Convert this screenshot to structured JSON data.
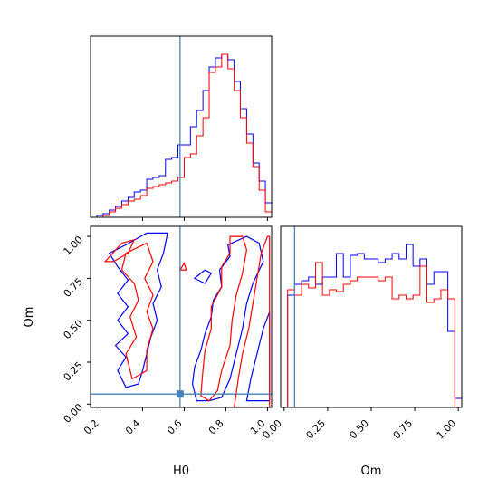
{
  "chart_data": {
    "type": "corner",
    "parameters": [
      "H0",
      "Om"
    ],
    "truths": {
      "H0": 0.58,
      "Om": 0.06
    },
    "colors": {
      "series_a": "#0000ff",
      "series_b": "#ff0000",
      "truth": "#4682b4"
    },
    "panels": [
      {
        "name": "H0-histogram",
        "type": "histogram",
        "xlim": [
          0.15,
          1.02
        ],
        "bin_edges": [
          0.15,
          0.18,
          0.21,
          0.24,
          0.27,
          0.3,
          0.33,
          0.36,
          0.39,
          0.42,
          0.45,
          0.48,
          0.51,
          0.54,
          0.57,
          0.6,
          0.63,
          0.66,
          0.69,
          0.72,
          0.75,
          0.78,
          0.81,
          0.84,
          0.87,
          0.9,
          0.93,
          0.96,
          0.99,
          1.02
        ],
        "series": [
          {
            "color": "blue",
            "values": [
              0,
              1,
              2,
              4,
              6,
              9,
              11,
              14,
              15,
              21,
              22,
              23,
              32,
              33,
              40,
              40,
              50,
              59,
              70,
              83,
              88,
              90,
              87,
              75,
              60,
              46,
              30,
              20,
              8
            ]
          },
          {
            "color": "red",
            "values": [
              0,
              0,
              1,
              3,
              5,
              7,
              9,
              10,
              12,
              16,
              17,
              18,
              19,
              20,
              22,
              33,
              35,
              45,
              55,
              80,
              83,
              90,
              82,
              70,
              55,
              41,
              28,
              15,
              3
            ]
          }
        ],
        "ylim": [
          0,
          100
        ]
      },
      {
        "name": "H0-Om-contour",
        "type": "contour",
        "xlim": [
          0.15,
          1.02
        ],
        "ylim": [
          -0.02,
          1.06
        ],
        "series": [
          {
            "color": "blue",
            "level_paths": [
              [
                [
                  0.32,
                  0.1
                ],
                [
                  0.28,
                  0.2
                ],
                [
                  0.32,
                  0.28
                ],
                [
                  0.27,
                  0.35
                ],
                [
                  0.33,
                  0.42
                ],
                [
                  0.28,
                  0.5
                ],
                [
                  0.33,
                  0.58
                ],
                [
                  0.28,
                  0.66
                ],
                [
                  0.33,
                  0.74
                ],
                [
                  0.28,
                  0.82
                ],
                [
                  0.24,
                  0.9
                ],
                [
                  0.32,
                  0.95
                ],
                [
                  0.42,
                  1.02
                ],
                [
                  0.52,
                  1.02
                ],
                [
                  0.5,
                  0.9
                ],
                [
                  0.47,
                  0.8
                ],
                [
                  0.49,
                  0.7
                ],
                [
                  0.45,
                  0.6
                ],
                [
                  0.47,
                  0.5
                ],
                [
                  0.44,
                  0.4
                ],
                [
                  0.42,
                  0.3
                ],
                [
                  0.4,
                  0.2
                ],
                [
                  0.38,
                  0.12
                ],
                [
                  0.32,
                  0.1
                ]
              ],
              [
                [
                  0.66,
                  0.02
                ],
                [
                  0.64,
                  0.12
                ],
                [
                  0.65,
                  0.22
                ],
                [
                  0.68,
                  0.32
                ],
                [
                  0.7,
                  0.42
                ],
                [
                  0.73,
                  0.52
                ],
                [
                  0.74,
                  0.62
                ],
                [
                  0.78,
                  0.7
                ],
                [
                  0.77,
                  0.8
                ],
                [
                  0.82,
                  0.88
                ],
                [
                  0.81,
                  0.95
                ],
                [
                  0.9,
                  1.0
                ],
                [
                  0.96,
                  0.96
                ],
                [
                  0.98,
                  0.85
                ],
                [
                  0.93,
                  0.72
                ],
                [
                  0.9,
                  0.6
                ],
                [
                  0.88,
                  0.45
                ],
                [
                  0.85,
                  0.3
                ],
                [
                  0.82,
                  0.15
                ],
                [
                  0.78,
                  0.04
                ],
                [
                  0.72,
                  0.02
                ],
                [
                  0.66,
                  0.02
                ]
              ],
              [
                [
                  0.9,
                  0.02
                ],
                [
                  0.92,
                  0.15
                ],
                [
                  0.95,
                  0.3
                ],
                [
                  0.98,
                  0.45
                ],
                [
                  1.01,
                  0.55
                ],
                [
                  1.01,
                  0.02
                ],
                [
                  0.9,
                  0.02
                ]
              ],
              [
                [
                  0.65,
                  0.75
                ],
                [
                  0.7,
                  0.8
                ],
                [
                  0.73,
                  0.78
                ],
                [
                  0.7,
                  0.72
                ],
                [
                  0.65,
                  0.75
                ]
              ]
            ]
          },
          {
            "color": "red",
            "level_paths": [
              [
                [
                  0.35,
                  0.15
                ],
                [
                  0.32,
                  0.3
                ],
                [
                  0.37,
                  0.4
                ],
                [
                  0.34,
                  0.52
                ],
                [
                  0.38,
                  0.62
                ],
                [
                  0.36,
                  0.72
                ],
                [
                  0.3,
                  0.8
                ],
                [
                  0.32,
                  0.9
                ],
                [
                  0.42,
                  0.96
                ],
                [
                  0.45,
                  0.85
                ],
                [
                  0.41,
                  0.75
                ],
                [
                  0.45,
                  0.65
                ],
                [
                  0.42,
                  0.55
                ],
                [
                  0.45,
                  0.45
                ],
                [
                  0.42,
                  0.32
                ],
                [
                  0.42,
                  0.2
                ],
                [
                  0.35,
                  0.15
                ]
              ],
              [
                [
                  0.22,
                  0.85
                ],
                [
                  0.3,
                  0.96
                ],
                [
                  0.36,
                  0.98
                ],
                [
                  0.33,
                  0.9
                ],
                [
                  0.26,
                  0.85
                ],
                [
                  0.22,
                  0.85
                ]
              ],
              [
                [
                  0.68,
                  0.05
                ],
                [
                  0.69,
                  0.2
                ],
                [
                  0.7,
                  0.32
                ],
                [
                  0.73,
                  0.45
                ],
                [
                  0.73,
                  0.58
                ],
                [
                  0.78,
                  0.7
                ],
                [
                  0.78,
                  0.82
                ],
                [
                  0.82,
                  0.9
                ],
                [
                  0.82,
                  1.0
                ],
                [
                  0.88,
                  1.0
                ],
                [
                  0.9,
                  0.92
                ],
                [
                  0.88,
                  0.78
                ],
                [
                  0.85,
                  0.65
                ],
                [
                  0.83,
                  0.5
                ],
                [
                  0.82,
                  0.35
                ],
                [
                  0.78,
                  0.2
                ],
                [
                  0.76,
                  0.08
                ],
                [
                  0.72,
                  0.02
                ],
                [
                  0.68,
                  0.05
                ]
              ],
              [
                [
                  0.84,
                  -0.02
                ],
                [
                  0.86,
                  0.15
                ],
                [
                  0.88,
                  0.3
                ],
                [
                  0.91,
                  0.45
                ],
                [
                  0.93,
                  0.6
                ],
                [
                  0.95,
                  0.75
                ],
                [
                  0.97,
                  0.9
                ],
                [
                  1.0,
                  1.0
                ],
                [
                  1.01,
                  1.0
                ],
                [
                  1.01,
                  -0.02
                ],
                [
                  0.84,
                  -0.02
                ]
              ],
              [
                [
                  0.58,
                  0.8
                ],
                [
                  0.6,
                  0.84
                ],
                [
                  0.61,
                  0.8
                ],
                [
                  0.58,
                  0.8
                ]
              ]
            ]
          }
        ]
      },
      {
        "name": "Om-histogram",
        "type": "histogram",
        "xlim": [
          -0.02,
          1.02
        ],
        "bin_edges": [
          -0.02,
          0.02,
          0.06,
          0.1,
          0.14,
          0.18,
          0.22,
          0.26,
          0.3,
          0.34,
          0.38,
          0.42,
          0.46,
          0.5,
          0.54,
          0.58,
          0.62,
          0.66,
          0.7,
          0.74,
          0.78,
          0.82,
          0.86,
          0.9,
          0.94,
          0.98,
          1.02
        ],
        "series": [
          {
            "color": "blue",
            "values": [
              0,
              62,
              68,
              70,
              72,
              68,
              72,
              72,
              85,
              72,
              84,
              85,
              82,
              82,
              80,
              82,
              85,
              82,
              90,
              78,
              82,
              68,
              75,
              75,
              42,
              5
            ]
          },
          {
            "color": "red",
            "values": [
              0,
              65,
              62,
              68,
              66,
              80,
              62,
              65,
              64,
              68,
              70,
              72,
              72,
              72,
              70,
              72,
              60,
              62,
              60,
              62,
              78,
              58,
              60,
              65,
              60,
              0
            ]
          }
        ],
        "ylim": [
          0,
          100
        ]
      }
    ],
    "x_ticks": {
      "H0": [
        "0.2",
        "0.4",
        "0.6",
        "0.8",
        "1.0"
      ],
      "Om": [
        "0.00",
        "0.25",
        "0.50",
        "0.75",
        "1.00"
      ]
    },
    "y_ticks": {
      "Om": [
        "0.00",
        "0.25",
        "0.50",
        "0.75",
        "1.00"
      ]
    },
    "xlabels": {
      "H0": "H0",
      "Om": "Om"
    },
    "ylabel": "Om"
  }
}
